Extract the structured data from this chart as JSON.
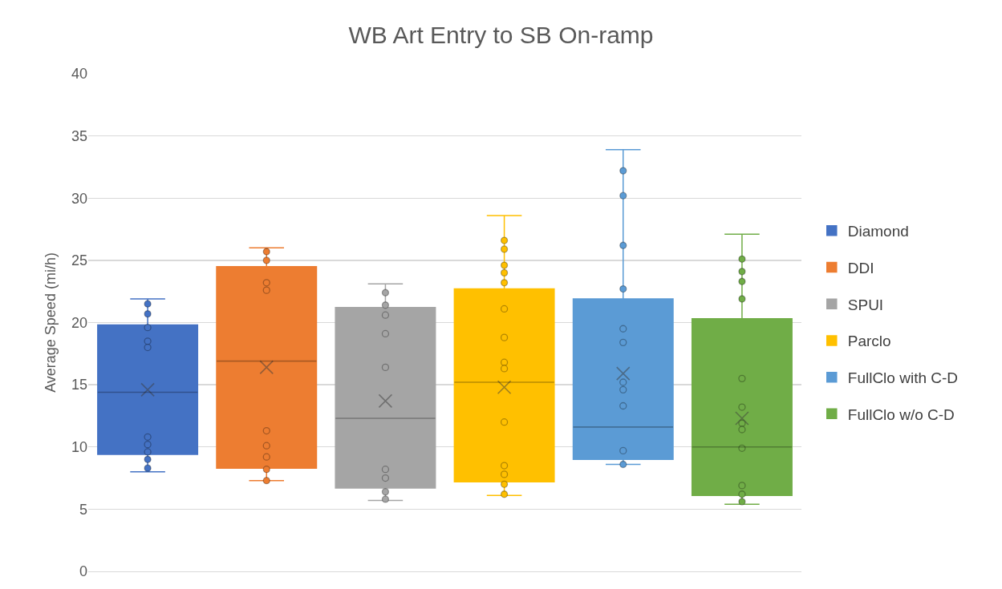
{
  "chart_data": {
    "type": "box",
    "title": "WB Art Entry to SB On-ramp",
    "ylabel": "Average Speed (mi/h)",
    "categories": [
      null
    ],
    "ylim": [
      0,
      40
    ],
    "yticks": [
      0,
      5,
      10,
      15,
      20,
      25,
      30,
      35,
      40
    ],
    "grid": "y",
    "legend": "right",
    "tick_labels": "y",
    "marker": "circle",
    "series": [
      {
        "name": "Diamond",
        "color": "#4472c4",
        "boxes": [
          {
            "low": 8.0,
            "q1": 9.4,
            "median": 14.4,
            "q3": 19.8,
            "high": 21.9,
            "mean": 14.6,
            "outliers": [
              21.5,
              20.7,
              19.6,
              18.5,
              18.0,
              10.8,
              10.2,
              9.6,
              9.0,
              8.3
            ]
          }
        ]
      },
      {
        "name": "DDI",
        "color": "#ed7d31",
        "boxes": [
          {
            "low": 7.3,
            "q1": 8.3,
            "median": 16.9,
            "q3": 24.5,
            "high": 26.0,
            "mean": 16.4,
            "outliers": [
              25.7,
              25.0,
              23.2,
              22.6,
              11.3,
              10.1,
              9.2,
              8.2,
              7.3
            ]
          }
        ]
      },
      {
        "name": "SPUI",
        "color": "#a5a5a5",
        "boxes": [
          {
            "low": 5.7,
            "q1": 6.7,
            "median": 12.3,
            "q3": 21.2,
            "high": 23.1,
            "mean": 13.7,
            "outliers": [
              22.4,
              21.4,
              20.6,
              19.1,
              16.4,
              8.2,
              7.5,
              6.4,
              5.8
            ]
          }
        ]
      },
      {
        "name": "Parclo",
        "color": "#ffc000",
        "boxes": [
          {
            "low": 6.1,
            "q1": 7.2,
            "median": 15.2,
            "q3": 22.7,
            "high": 28.6,
            "mean": 14.8,
            "outliers": [
              26.6,
              25.9,
              24.6,
              24.0,
              23.2,
              21.1,
              18.8,
              16.8,
              16.3,
              12.0,
              8.5,
              7.8,
              7.0,
              6.2
            ]
          }
        ]
      },
      {
        "name": "FullClo with C-D",
        "color": "#5b9bd5",
        "boxes": [
          {
            "low": 8.6,
            "q1": 9.0,
            "median": 11.6,
            "q3": 21.9,
            "high": 33.9,
            "mean": 15.9,
            "outliers": [
              32.2,
              30.2,
              26.2,
              22.7,
              19.5,
              18.4,
              15.2,
              14.6,
              13.3,
              9.7,
              8.6
            ]
          }
        ]
      },
      {
        "name": "FullClo w/o C-D",
        "color": "#70ad47",
        "boxes": [
          {
            "low": 5.4,
            "q1": 6.1,
            "median": 10.0,
            "q3": 20.3,
            "high": 27.1,
            "mean": 12.3,
            "outliers": [
              25.1,
              24.1,
              23.3,
              21.9,
              15.5,
              13.2,
              11.9,
              11.4,
              9.9,
              6.9,
              6.2,
              5.6
            ]
          }
        ]
      }
    ]
  }
}
